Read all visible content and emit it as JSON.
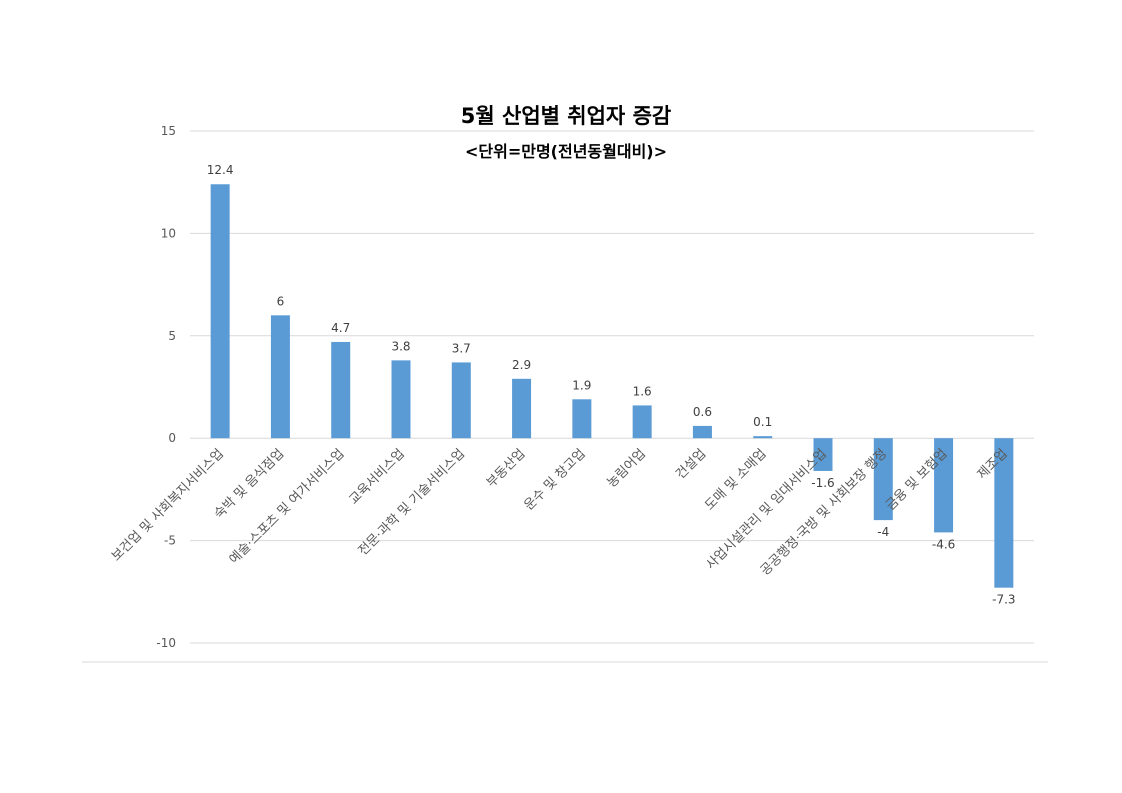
{
  "chart_data": {
    "type": "bar",
    "title": "5월 산업별 취업자 증감",
    "subtitle": "<단위=만명(전년동월대비)>",
    "xlabel": "",
    "ylabel": "",
    "ylim": [
      -10,
      15
    ],
    "yticks": [
      15,
      10,
      5,
      0,
      -5,
      -10
    ],
    "ytick_labels": [
      "15",
      "10",
      "5",
      "0",
      "-5",
      "-10"
    ],
    "grid": true,
    "legend": "none",
    "color": "#5b9bd5",
    "categories": [
      "보건업 및 사회복지서비스업",
      "숙박 및 음식점업",
      "예술·스포츠 및 여가서비스업",
      "교육서비스업",
      "전문·과학 및 기술서비스업",
      "부동산업",
      "운수 및 창고업",
      "농림어업",
      "건설업",
      "도매 및 소매업",
      "사업시설관리 및 임대서비스업",
      "공공행정·국방 및 사회보장 행정",
      "금융 및 보험업",
      "제조업"
    ],
    "values": [
      12.4,
      6,
      4.7,
      3.8,
      3.7,
      2.9,
      1.9,
      1.6,
      0.6,
      0.1,
      -1.6,
      -4,
      -4.6,
      -7.3
    ],
    "value_labels": [
      "12.4",
      "6",
      "4.7",
      "3.8",
      "3.7",
      "2.9",
      "1.9",
      "1.6",
      "0.6",
      "0.1",
      "-1.6",
      "-4",
      "-4.6",
      "-7.3"
    ]
  }
}
